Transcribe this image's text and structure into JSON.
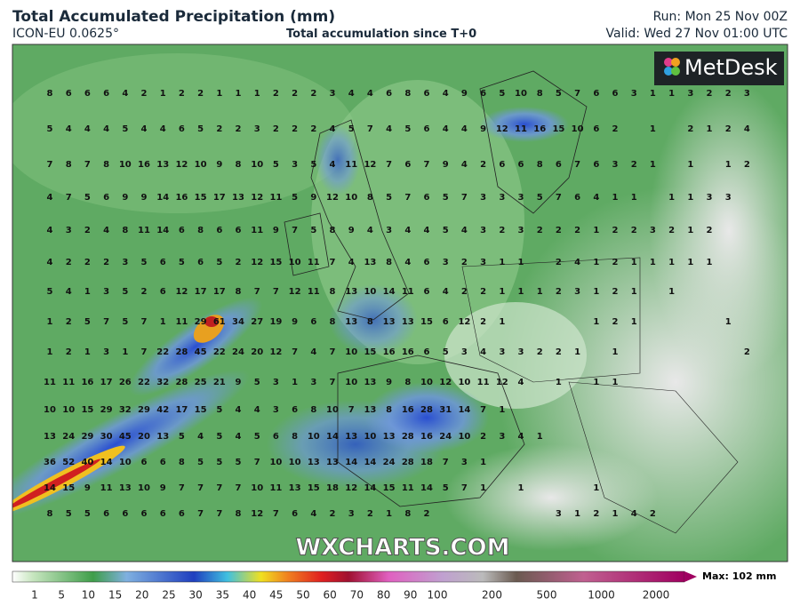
{
  "header": {
    "title": "Total Accumulated Precipitation (mm)",
    "model": "ICON-EU 0.0625°",
    "subtitle": "Total accumulation since T+0",
    "run": "Run: Mon 25 Nov 00Z",
    "valid": "Valid: Wed 27 Nov 01:00 UTC"
  },
  "logo": "MetDesk",
  "watermark": "WXCHARTS.COM",
  "grid": {
    "rows": [
      [
        8,
        6,
        6,
        6,
        4,
        2,
        1,
        2,
        2,
        1,
        1,
        1,
        2,
        2,
        2,
        3,
        4,
        4,
        6,
        8,
        6,
        4,
        9,
        6,
        5,
        10,
        8,
        5,
        7,
        6,
        6,
        3,
        1,
        1,
        3,
        2,
        2,
        3
      ],
      [
        5,
        4,
        4,
        4,
        5,
        4,
        4,
        6,
        5,
        2,
        2,
        3,
        2,
        2,
        2,
        4,
        5,
        7,
        4,
        5,
        6,
        4,
        4,
        9,
        12,
        11,
        16,
        15,
        10,
        6,
        2,
        null,
        1,
        null,
        2,
        1,
        2,
        4
      ],
      [
        7,
        8,
        7,
        8,
        10,
        16,
        13,
        12,
        10,
        9,
        8,
        10,
        5,
        3,
        5,
        4,
        11,
        12,
        7,
        6,
        7,
        9,
        4,
        2,
        6,
        6,
        8,
        6,
        7,
        6,
        3,
        2,
        1,
        null,
        1,
        null,
        1,
        2
      ],
      [
        4,
        7,
        5,
        6,
        9,
        9,
        14,
        16,
        15,
        17,
        13,
        12,
        11,
        5,
        9,
        12,
        10,
        8,
        5,
        7,
        6,
        5,
        7,
        3,
        3,
        3,
        5,
        7,
        6,
        4,
        1,
        1,
        null,
        1,
        1,
        3,
        3
      ],
      [
        4,
        3,
        2,
        4,
        8,
        11,
        14,
        6,
        8,
        6,
        6,
        11,
        9,
        7,
        5,
        8,
        9,
        4,
        3,
        4,
        4,
        5,
        4,
        3,
        2,
        3,
        2,
        2,
        2,
        1,
        2,
        2,
        3,
        2,
        1,
        2
      ],
      [
        4,
        2,
        2,
        2,
        3,
        5,
        6,
        5,
        6,
        5,
        2,
        12,
        15,
        10,
        11,
        7,
        4,
        13,
        8,
        4,
        6,
        3,
        2,
        3,
        1,
        1,
        null,
        2,
        4,
        1,
        2,
        1,
        1,
        1,
        1,
        1
      ],
      [
        5,
        4,
        1,
        3,
        5,
        2,
        6,
        12,
        17,
        17,
        8,
        7,
        7,
        12,
        11,
        8,
        13,
        10,
        14,
        11,
        6,
        4,
        2,
        2,
        1,
        1,
        1,
        2,
        3,
        1,
        2,
        1,
        null,
        1
      ],
      [
        1,
        2,
        5,
        7,
        5,
        7,
        1,
        11,
        29,
        61,
        34,
        27,
        19,
        9,
        6,
        8,
        13,
        8,
        13,
        13,
        15,
        6,
        12,
        2,
        1,
        null,
        null,
        null,
        null,
        1,
        2,
        1,
        null,
        null,
        null,
        null,
        1
      ],
      [
        1,
        2,
        1,
        3,
        1,
        7,
        22,
        28,
        45,
        22,
        24,
        20,
        12,
        7,
        4,
        7,
        10,
        15,
        16,
        16,
        6,
        5,
        3,
        4,
        3,
        3,
        2,
        2,
        1,
        null,
        1,
        null,
        null,
        null,
        null,
        null,
        null,
        2
      ],
      [
        11,
        11,
        16,
        17,
        26,
        22,
        32,
        28,
        25,
        21,
        9,
        5,
        3,
        1,
        3,
        7,
        10,
        13,
        9,
        8,
        10,
        12,
        10,
        11,
        12,
        4,
        null,
        1,
        null,
        1,
        1
      ],
      [
        10,
        10,
        15,
        29,
        32,
        29,
        42,
        17,
        15,
        5,
        4,
        4,
        3,
        6,
        8,
        10,
        7,
        13,
        8,
        16,
        28,
        31,
        14,
        7,
        1
      ],
      [
        13,
        24,
        29,
        30,
        45,
        20,
        13,
        5,
        4,
        5,
        4,
        5,
        6,
        8,
        10,
        14,
        13,
        10,
        13,
        28,
        16,
        24,
        10,
        2,
        3,
        4,
        1
      ],
      [
        36,
        52,
        40,
        14,
        10,
        6,
        6,
        8,
        5,
        5,
        5,
        7,
        10,
        10,
        13,
        13,
        14,
        14,
        24,
        28,
        18,
        7,
        3,
        1
      ],
      [
        14,
        15,
        9,
        11,
        13,
        10,
        9,
        7,
        7,
        7,
        7,
        10,
        11,
        13,
        15,
        18,
        12,
        14,
        15,
        11,
        14,
        5,
        7,
        1,
        null,
        1,
        null,
        null,
        null,
        1
      ],
      [
        8,
        5,
        5,
        6,
        6,
        6,
        6,
        6,
        7,
        7,
        8,
        12,
        7,
        6,
        4,
        2,
        3,
        2,
        1,
        8,
        2,
        null,
        null,
        null,
        null,
        null,
        null,
        3,
        1,
        2,
        1,
        4,
        2
      ]
    ]
  },
  "colorbar": {
    "ticks": [
      1,
      5,
      10,
      15,
      20,
      25,
      30,
      35,
      40,
      45,
      50,
      60,
      70,
      80,
      90,
      100,
      200,
      500,
      1000,
      2000
    ],
    "max_label": "Max: 102 mm"
  }
}
